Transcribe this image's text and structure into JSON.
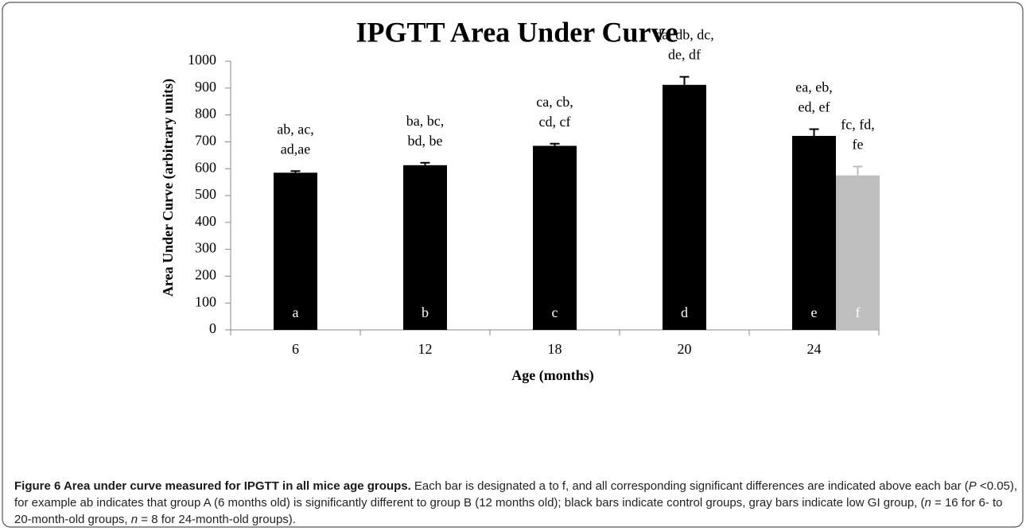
{
  "chart_data": {
    "type": "bar",
    "title": "IPGTT Area Under Curve",
    "x_label": "Age (months)",
    "y_label": "Area Under Curve (arbitrary units)",
    "categories": [
      "6",
      "12",
      "18",
      "20",
      "24"
    ],
    "ylim": [
      0,
      1000
    ],
    "yticks": [
      0,
      100,
      200,
      300,
      400,
      500,
      600,
      700,
      800,
      900,
      1000
    ],
    "series": [
      {
        "color": "#000000",
        "values": [
          585,
          613,
          685,
          912,
          722
        ],
        "errors": [
          6,
          9,
          8,
          30,
          25
        ],
        "bar_labels": [
          "a",
          "b",
          "c",
          "d",
          "e"
        ],
        "annotations": [
          [
            "ab, ac,",
            "ad,ae"
          ],
          [
            "ba, bc,",
            "bd, be"
          ],
          [
            "ca, cb,",
            "cd, cf"
          ],
          [
            "da, db, dc,",
            "de, df"
          ],
          [
            "ea, eb,",
            "ed, ef"
          ]
        ]
      },
      {
        "color": "#bfbfbf",
        "values": [
          null,
          null,
          null,
          null,
          575
        ],
        "errors": [
          null,
          null,
          null,
          null,
          33
        ],
        "bar_labels": [
          null,
          null,
          null,
          null,
          "f"
        ],
        "annotations": [
          null,
          null,
          null,
          null,
          [
            "fc, fd,",
            "fe"
          ]
        ]
      }
    ]
  },
  "caption": [
    {
      "text": "Figure 6 Area under curve measured for IPGTT in all mice age groups.",
      "bold": true
    },
    {
      "text": " Each bar is designated a to f, and all corresponding significant differences are indicated above each bar ("
    },
    {
      "text": "P",
      "italic": true
    },
    {
      "text": " <0.05), for example ab indicates that group A (6 months old) is significantly different to group B (12 months old); black bars indicate control groups, gray bars indicate low GI group, ("
    },
    {
      "text": "n",
      "italic": true
    },
    {
      "text": " = 16 for 6- to 20-month-old groups, "
    },
    {
      "text": "n",
      "italic": true
    },
    {
      "text": " = 8 for 24-month-old groups)."
    }
  ]
}
